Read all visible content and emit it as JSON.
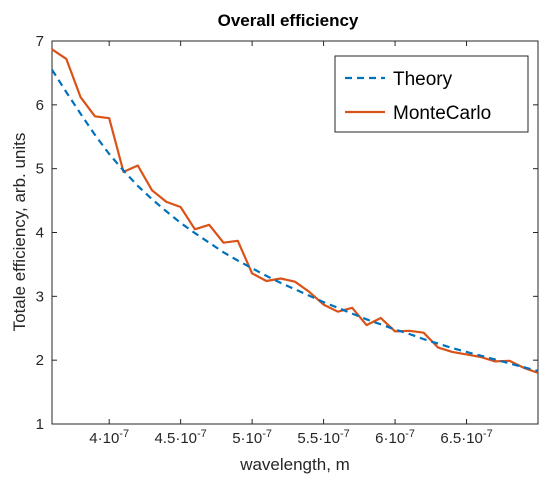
{
  "chart_data": {
    "type": "line",
    "title": "Overall efficiency",
    "xlabel": "wavelength, m",
    "ylabel": "Totale efficiency, arb. units",
    "xlim": [
      3.6e-07,
      7e-07
    ],
    "ylim": [
      1,
      7
    ],
    "xticks": [
      {
        "value": 4e-07,
        "mantissa": "4",
        "base": "·10",
        "exp": "-7"
      },
      {
        "value": 4.5e-07,
        "mantissa": "4.5",
        "base": "·10",
        "exp": "-7"
      },
      {
        "value": 5e-07,
        "mantissa": "5",
        "base": "·10",
        "exp": "-7"
      },
      {
        "value": 5.5e-07,
        "mantissa": "5.5",
        "base": "·10",
        "exp": "-7"
      },
      {
        "value": 6e-07,
        "mantissa": "6",
        "base": "·10",
        "exp": "-7"
      },
      {
        "value": 6.5e-07,
        "mantissa": "6.5",
        "base": "·10",
        "exp": "-7"
      }
    ],
    "yticks": [
      1,
      2,
      3,
      4,
      5,
      6,
      7
    ],
    "grid": false,
    "legend_position": "top-right",
    "series": [
      {
        "name": "Theory",
        "color": "#0072BD",
        "style": "dashed",
        "x": [
          3.6e-07,
          3.7e-07,
          3.8e-07,
          3.9e-07,
          4e-07,
          4.1e-07,
          4.2e-07,
          4.3e-07,
          4.4e-07,
          4.5e-07,
          4.6e-07,
          4.7e-07,
          4.8e-07,
          4.9e-07,
          5e-07,
          5.1e-07,
          5.2e-07,
          5.3e-07,
          5.4e-07,
          5.5e-07,
          5.6e-07,
          5.7e-07,
          5.8e-07,
          5.9e-07,
          6e-07,
          6.1e-07,
          6.2e-07,
          6.3e-07,
          6.4e-07,
          6.5e-07,
          6.6e-07,
          6.7e-07,
          6.8e-07,
          6.9e-07,
          7e-07
        ],
        "y": [
          6.55,
          6.2,
          5.86,
          5.53,
          5.23,
          4.97,
          4.73,
          4.52,
          4.33,
          4.15,
          3.99,
          3.84,
          3.69,
          3.56,
          3.44,
          3.32,
          3.21,
          3.11,
          3.01,
          2.91,
          2.82,
          2.73,
          2.64,
          2.56,
          2.48,
          2.41,
          2.33,
          2.26,
          2.19,
          2.13,
          2.07,
          2.01,
          1.95,
          1.89,
          1.83
        ]
      },
      {
        "name": "MonteCarlo",
        "color": "#D95319",
        "style": "solid",
        "x": [
          3.6e-07,
          3.7e-07,
          3.8e-07,
          3.9e-07,
          4e-07,
          4.1e-07,
          4.2e-07,
          4.3e-07,
          4.4e-07,
          4.5e-07,
          4.6e-07,
          4.7e-07,
          4.8e-07,
          4.9e-07,
          5e-07,
          5.1e-07,
          5.2e-07,
          5.3e-07,
          5.4e-07,
          5.5e-07,
          5.6e-07,
          5.7e-07,
          5.8e-07,
          5.9e-07,
          6e-07,
          6.1e-07,
          6.2e-07,
          6.3e-07,
          6.4e-07,
          6.5e-07,
          6.6e-07,
          6.7e-07,
          6.8e-07,
          6.9e-07,
          7e-07
        ],
        "y": [
          6.87,
          6.72,
          6.12,
          5.82,
          5.79,
          4.95,
          5.05,
          4.66,
          4.48,
          4.4,
          4.05,
          4.12,
          3.84,
          3.87,
          3.36,
          3.24,
          3.28,
          3.23,
          3.07,
          2.87,
          2.76,
          2.82,
          2.55,
          2.66,
          2.45,
          2.46,
          2.43,
          2.2,
          2.13,
          2.09,
          2.05,
          1.98,
          1.99,
          1.88,
          1.8
        ]
      }
    ]
  }
}
